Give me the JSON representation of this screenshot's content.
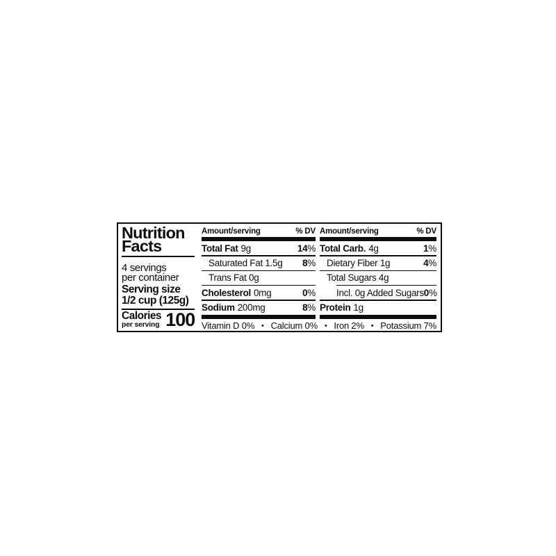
{
  "label": {
    "title_line1": "Nutrition",
    "title_line2": "Facts",
    "servings_line1": "4 servings",
    "servings_line2": "per container",
    "serving_size_line1": "Serving size",
    "serving_size_line2": "1/2 cup (125g)",
    "calories_label": "Calories",
    "calories_sub": "per serving",
    "calories_value": "100",
    "columns": [
      {
        "header_amount": "Amount/serving",
        "header_dv": "% DV",
        "rows": [
          {
            "bold": "Total Fat",
            "rest": "9g",
            "dv": "14",
            "pct": "%"
          },
          {
            "bold": "",
            "rest": "Saturated Fat 1.5g",
            "dv": "8",
            "pct": "%"
          },
          {
            "bold": "",
            "rest": "Trans Fat 0g",
            "dv": "",
            "pct": ""
          },
          {
            "bold": "Cholesterol",
            "rest": "0mg",
            "dv": "0",
            "pct": "%"
          },
          {
            "bold": "Sodium",
            "rest": "200mg",
            "dv": "8",
            "pct": "%"
          }
        ]
      },
      {
        "header_amount": "Amount/serving",
        "header_dv": "% DV",
        "rows": [
          {
            "bold": "Total Carb.",
            "rest": "4g",
            "dv": "1",
            "pct": "%"
          },
          {
            "bold": "",
            "rest": "Dietary Fiber 1g",
            "dv": "4",
            "pct": "%"
          },
          {
            "bold": "",
            "rest": "Total Sugars 4g",
            "dv": "",
            "pct": ""
          },
          {
            "bold": "",
            "rest": "Incl. 0g Added Sugars",
            "dv": "0",
            "pct": "%"
          },
          {
            "bold": "Protein",
            "rest": "1g",
            "dv": "",
            "pct": ""
          }
        ]
      }
    ],
    "footer": {
      "items": [
        "Vitamin D 0%",
        "Calcium 0%",
        "Iron 2%",
        "Potassium 7%"
      ],
      "bullet": "•"
    },
    "colors": {
      "ink": "#0d0d0d",
      "background": "#ffffff"
    }
  }
}
